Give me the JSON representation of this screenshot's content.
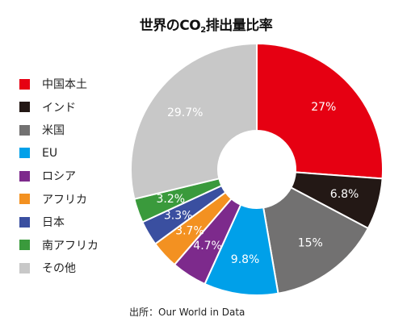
{
  "title_main": "世界のCO",
  "title_sub": "2",
  "title_rest": "排出量比率",
  "source": "出所：Our World in Data",
  "chart_data": {
    "type": "pie",
    "donut": true,
    "legend_position": "left",
    "categories": [
      "中国本土",
      "インド",
      "米国",
      "EU",
      "ロシア",
      "アフリカ",
      "日本",
      "南アフリカ",
      "その他"
    ],
    "values": [
      27,
      6.8,
      15,
      9.8,
      4.7,
      3.7,
      3.3,
      3.2,
      29.7
    ],
    "labels": [
      "27%",
      "6.8%",
      "15%",
      "9.8%",
      "4.7%",
      "3.7%",
      "3.3%",
      "3.2%",
      "29.7%"
    ],
    "colors": [
      "#e60012",
      "#231815",
      "#727171",
      "#00a0e9",
      "#7d2a8c",
      "#f39121",
      "#3a4fa0",
      "#3a9a3c",
      "#c8c8c8"
    ]
  }
}
